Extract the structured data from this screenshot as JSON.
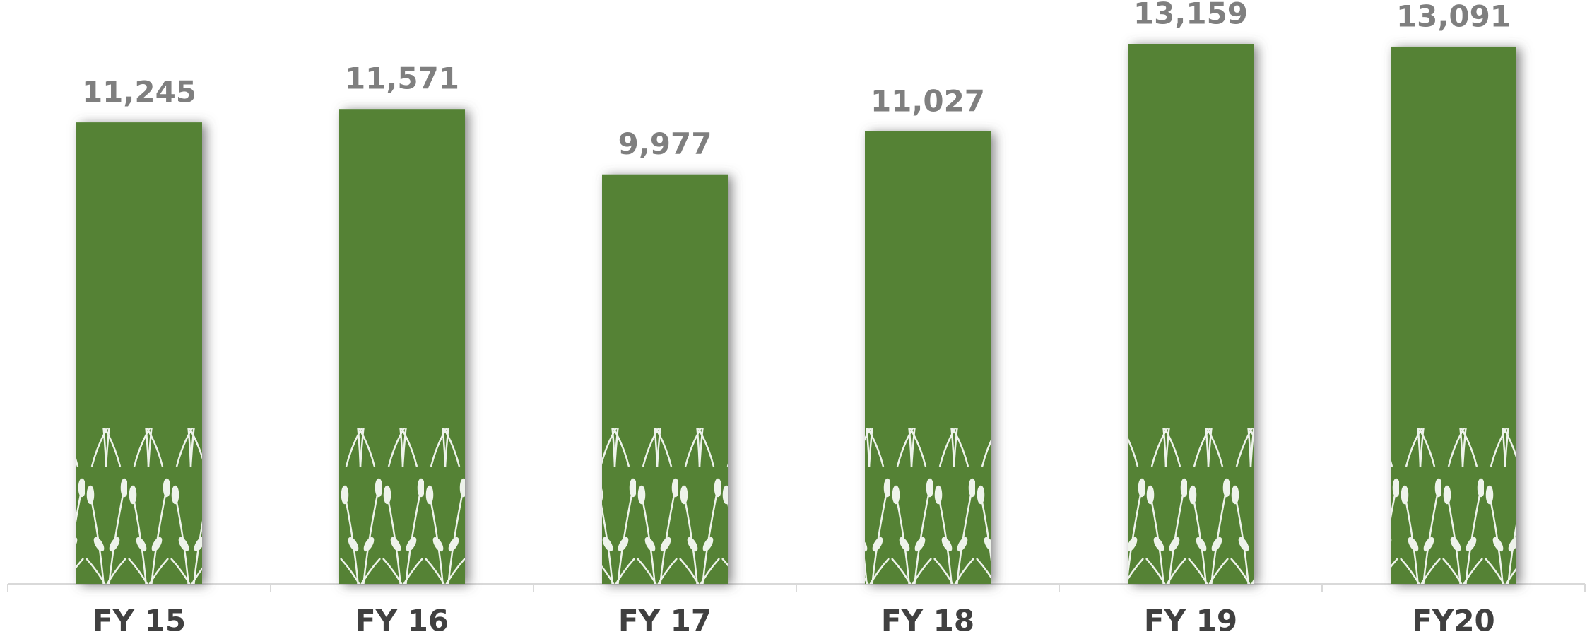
{
  "chart_data": {
    "type": "bar",
    "categories": [
      "FY 15",
      "FY 16",
      "FY 17",
      "FY 18",
      "FY 19",
      "FY20"
    ],
    "values": [
      11245,
      11571,
      9977,
      11027,
      13159,
      13091
    ],
    "value_labels": [
      "11,245",
      "11,571",
      "9,977",
      "11,027",
      "13,159",
      "13,091"
    ],
    "color": "#548235"
  }
}
